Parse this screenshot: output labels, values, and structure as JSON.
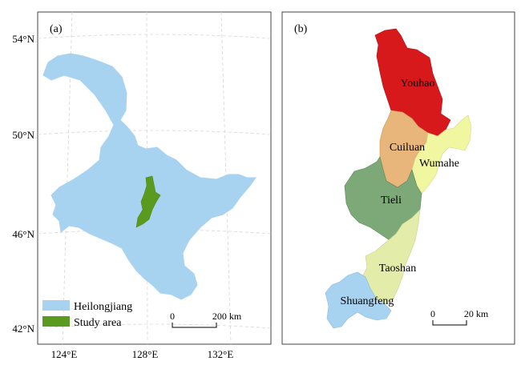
{
  "panel_a": {
    "label": "(a)",
    "lat_ticks": [
      "54°N",
      "50°N",
      "46°N",
      "42°N"
    ],
    "lon_ticks": [
      "124°E",
      "128°E",
      "132°E"
    ],
    "legend": [
      {
        "label": "Heilongjiang",
        "color": "#a8d3f0"
      },
      {
        "label": "Study area",
        "color": "#5a9a1e"
      }
    ],
    "scale": {
      "start": "0",
      "end": "200 km"
    },
    "colors": {
      "province": "#a8d3f0",
      "study_area": "#5a9a1e"
    }
  },
  "panel_b": {
    "label": "(b)",
    "districts": [
      {
        "name": "Youhao",
        "color": "#d7191c"
      },
      {
        "name": "Cuiluan",
        "color": "#e8b67a"
      },
      {
        "name": "Wumahe",
        "color": "#f1f7a0"
      },
      {
        "name": "Tieli",
        "color": "#7da878"
      },
      {
        "name": "Taoshan",
        "color": "#e4ecaa"
      },
      {
        "name": "Shuangfeng",
        "color": "#a8d3f0"
      }
    ],
    "scale": {
      "start": "0",
      "end": "20 km"
    }
  }
}
